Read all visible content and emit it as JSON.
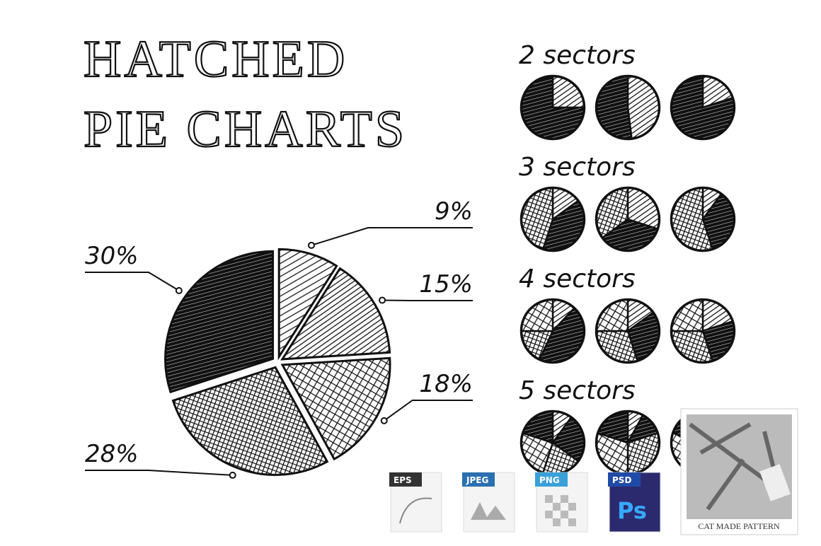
{
  "chart_data": {
    "type": "pie",
    "title": [
      "HATCHED",
      "PIE CHARTS"
    ],
    "categories": [
      null,
      null,
      null,
      null,
      null
    ],
    "values": [
      9,
      15,
      18,
      28,
      30
    ],
    "value_labels": [
      "9%",
      "15%",
      "18%",
      "28%",
      "30%"
    ],
    "color": "#111111"
  },
  "examples": [
    {
      "label": "2 sectors"
    },
    {
      "label": "3 sectors"
    },
    {
      "label": "4 sectors"
    },
    {
      "label": "5 sectors"
    }
  ],
  "formats": [
    "EPS",
    "JPEG",
    "PNG",
    "PSD"
  ],
  "ps_icon": "Ps",
  "brand": "CAT MADE PATTERN"
}
